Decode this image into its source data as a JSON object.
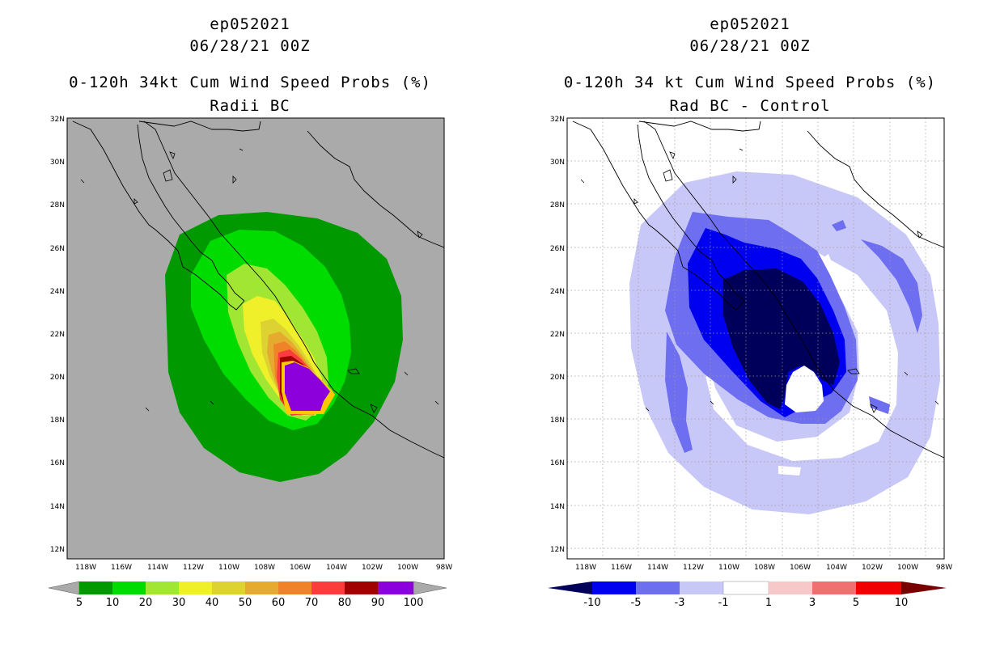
{
  "left_panel": {
    "title": {
      "storm_id": "ep052021",
      "datetime": "06/28/21 00Z",
      "product": "0-120h 34kt Cum Wind Speed Probs (%)",
      "subtitle": "Radii BC"
    },
    "colorbar": {
      "labels": [
        "5",
        "10",
        "20",
        "30",
        "40",
        "50",
        "60",
        "70",
        "80",
        "90",
        "100"
      ],
      "colors": [
        "#009a00",
        "#00dc00",
        "#a0e632",
        "#f0f02a",
        "#dcd232",
        "#e6aa2e",
        "#f08228",
        "#fa3c3c",
        "#a00000",
        "#8c00dc"
      ]
    }
  },
  "right_panel": {
    "title": {
      "storm_id": "ep052021",
      "datetime": "06/28/21 00Z",
      "product": "0-120h 34 kt Cum Wind Speed Probs (%)",
      "subtitle": "Rad BC - Control"
    },
    "colorbar": {
      "labels": [
        "-10",
        "-5",
        "-3",
        "-1",
        "1",
        "3",
        "5",
        "10"
      ],
      "colors": [
        "#00005a",
        "#0000f0",
        "#6e6ef0",
        "#c8c8f8",
        "#ffffff",
        "#f8c8c8",
        "#f07070",
        "#f00000",
        "#780000"
      ]
    }
  },
  "axes": {
    "lat_labels": [
      "32N",
      "30N",
      "28N",
      "26N",
      "24N",
      "22N",
      "20N",
      "18N",
      "16N",
      "14N",
      "12N"
    ],
    "lon_labels": [
      "118W",
      "116W",
      "114W",
      "112W",
      "110W",
      "108W",
      "106W",
      "104W",
      "102W",
      "100W",
      "98W"
    ]
  }
}
